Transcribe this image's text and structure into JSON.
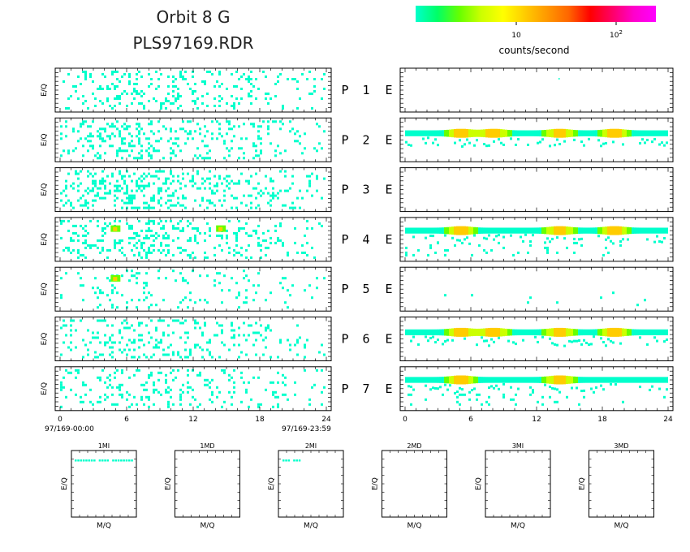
{
  "title": {
    "line1": "Orbit 8 G",
    "line2": "PLS97169.RDR"
  },
  "colorbar": {
    "label": "counts/second",
    "tick_10": "10",
    "tick_100_base": "10",
    "tick_100_exp": "2",
    "stops": [
      "#00ffcc",
      "#00ff66",
      "#66ff00",
      "#ccff00",
      "#ffff00",
      "#ffcc00",
      "#ff9900",
      "#ff6600",
      "#ff0000",
      "#ff0066",
      "#ff00cc",
      "#ff00ff"
    ]
  },
  "y_axis_label": "E/Q",
  "x_axis_label": "M/Q",
  "panel_rows": [
    {
      "p_label": "P",
      "num": "1",
      "e_label": "E"
    },
    {
      "p_label": "P",
      "num": "2",
      "e_label": "E"
    },
    {
      "p_label": "P",
      "num": "3",
      "e_label": "E"
    },
    {
      "p_label": "P",
      "num": "4",
      "e_label": "E"
    },
    {
      "p_label": "P",
      "num": "5",
      "e_label": "E"
    },
    {
      "p_label": "P",
      "num": "6",
      "e_label": "E"
    },
    {
      "p_label": "P",
      "num": "7",
      "e_label": "E"
    }
  ],
  "time_axis": {
    "ticks": [
      "0",
      "6",
      "12",
      "18",
      "24"
    ],
    "start_label": "97/169-00:00",
    "end_label": "97/169-23:59"
  },
  "small_panels": [
    {
      "title": "1MI"
    },
    {
      "title": "1MD"
    },
    {
      "title": "2MI"
    },
    {
      "title": "2MD"
    },
    {
      "title": "3MI"
    },
    {
      "title": "3MD"
    }
  ],
  "chart_data": {
    "type": "heatmap",
    "x_range_hours": [
      0,
      24
    ],
    "x_ticks": [
      0,
      6,
      12,
      18,
      24
    ],
    "color_scale": "log",
    "density": {
      "left_P": [
        0.35,
        0.45,
        0.5,
        0.42,
        0.18,
        0.38,
        0.3
      ],
      "right_E": [
        0.0,
        0.0,
        0.0,
        0.22,
        0.02,
        0.0,
        0.18
      ]
    },
    "bands_right_E": [
      {
        "panel": 2,
        "level": 0.35,
        "hot_hours": [
          5,
          8,
          14,
          19
        ]
      },
      {
        "panel": 4,
        "level": 0.3,
        "hot_hours": [
          5,
          14,
          19
        ]
      },
      {
        "panel": 6,
        "level": 0.35,
        "hot_hours": [
          5,
          8,
          14,
          19
        ]
      },
      {
        "panel": 7,
        "level": 0.3,
        "hot_hours": [
          5,
          14
        ]
      }
    ],
    "hotspots_left_P": [
      {
        "panel": 4,
        "hours": [
          5,
          14.5
        ]
      },
      {
        "panel": 5,
        "hours": [
          5
        ]
      }
    ]
  }
}
